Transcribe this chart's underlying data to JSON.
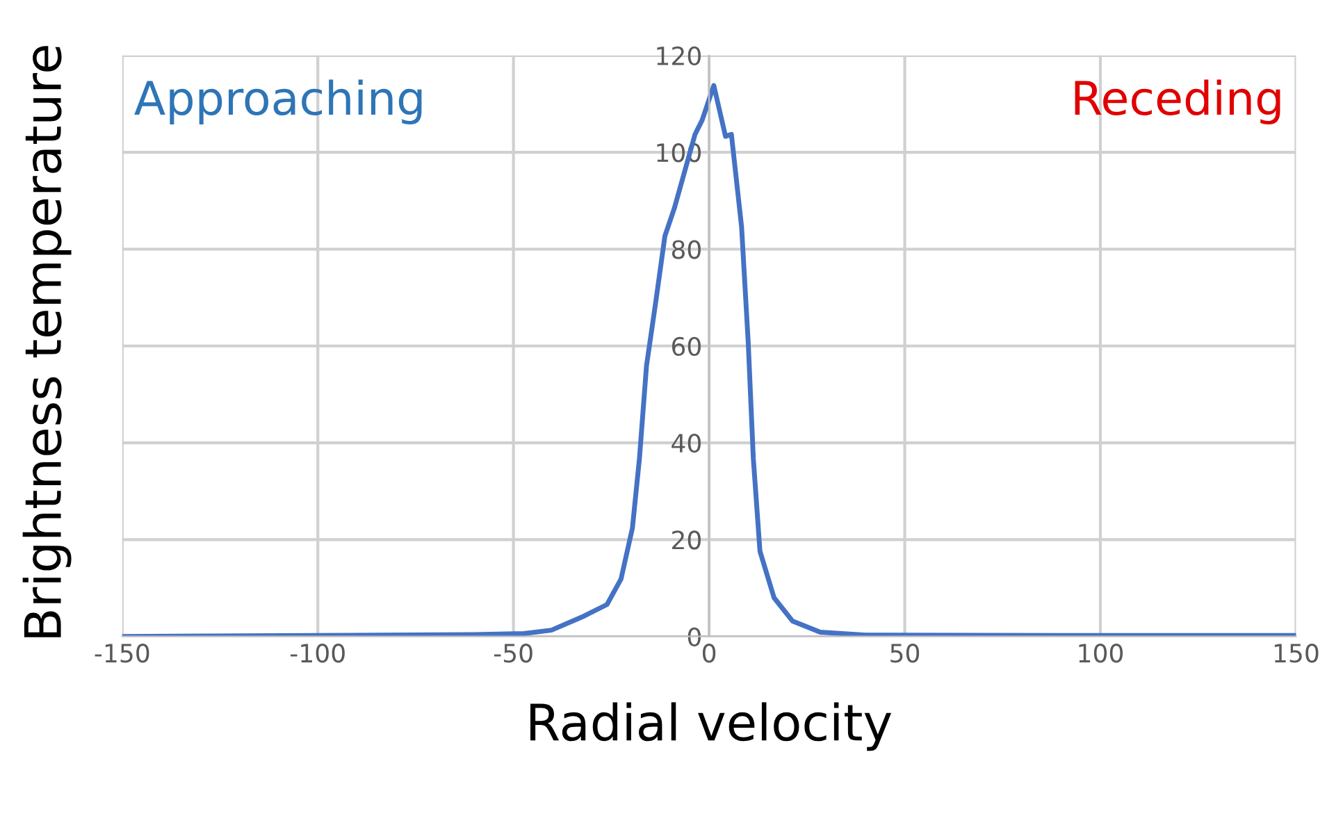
{
  "chart_data": {
    "type": "line",
    "xlabel": "Radial velocity",
    "ylabel": "Brightness temperature",
    "annotations": [
      "Approaching",
      "Receding"
    ],
    "series": [
      {
        "color": "#4472c4",
        "x": [
          -150,
          -100,
          -60,
          -47.4,
          -40.3,
          -32,
          -26.1,
          -22.5,
          -19.6,
          -17.8,
          -16,
          -13.6,
          -11.3,
          -8.9,
          -3.6,
          -1.8,
          1.2,
          4.2,
          5.7,
          8.3,
          10,
          11.3,
          13,
          16.6,
          21.3,
          28.4,
          40,
          100,
          150
        ],
        "values": [
          0,
          0.2,
          0.4,
          0.6,
          1.3,
          4.2,
          6.6,
          11.9,
          22.4,
          36.8,
          55.9,
          69.3,
          82.7,
          88.4,
          103.7,
          106.6,
          113.8,
          103.3,
          103.7,
          84.6,
          60.7,
          36.8,
          17.6,
          8,
          3.2,
          0.9,
          0.3,
          0.2,
          0.2
        ]
      }
    ],
    "xlim": [
      -150,
      150
    ],
    "xticks": [
      -150,
      -100,
      -50,
      0,
      50,
      100,
      150
    ],
    "ylim": [
      0,
      120
    ],
    "yticks": [
      0,
      20,
      40,
      60,
      80,
      100,
      120
    ],
    "grid": true
  }
}
